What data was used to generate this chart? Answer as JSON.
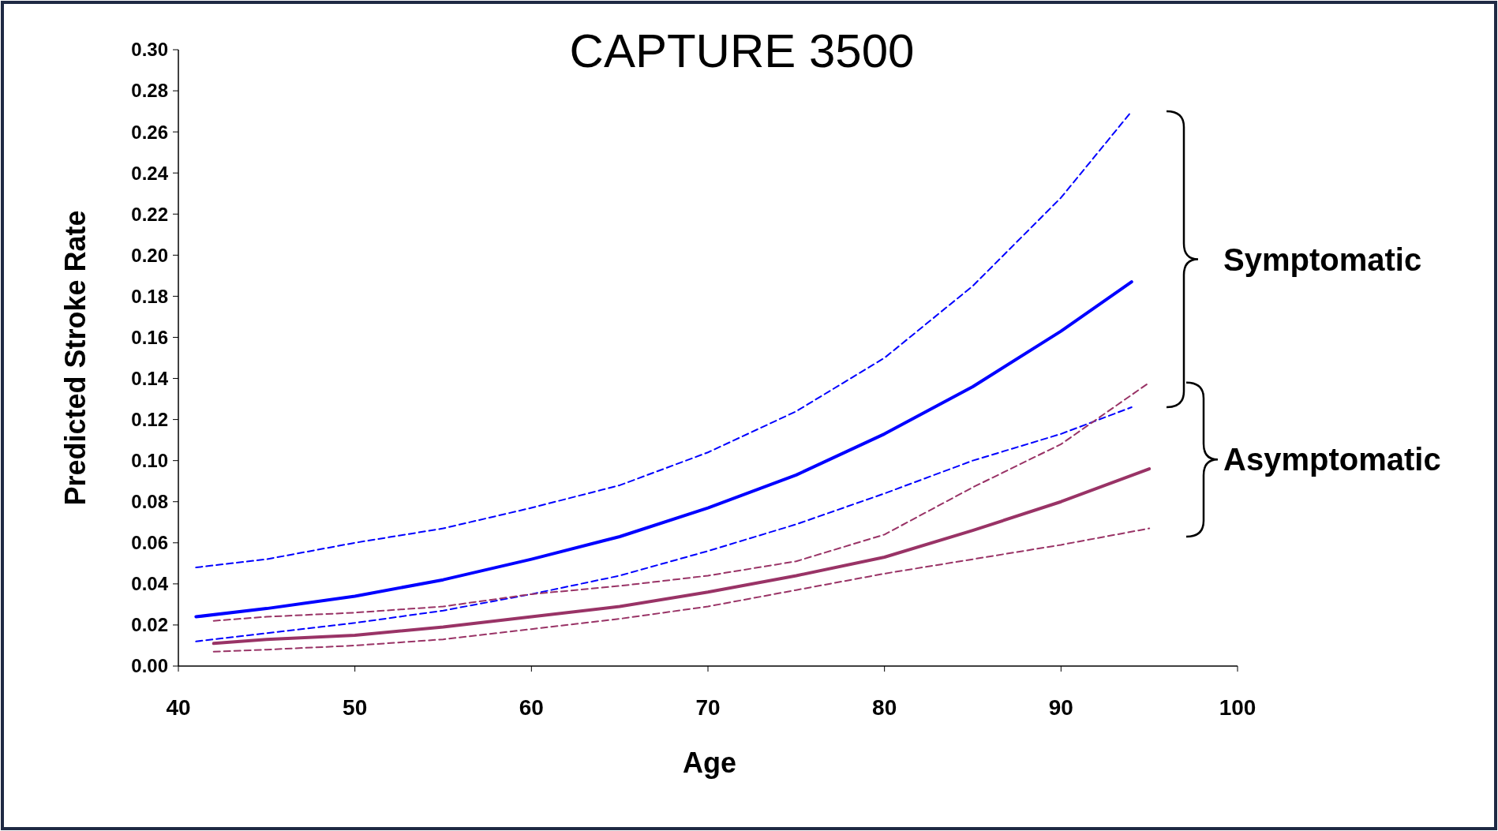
{
  "chart_data": {
    "type": "line",
    "title": "CAPTURE 3500",
    "xlabel": "Age",
    "ylabel": "Predicted Stroke Rate",
    "xlim": [
      40,
      100
    ],
    "xticks": [
      40,
      50,
      60,
      70,
      80,
      90,
      100
    ],
    "ylim": [
      0,
      0.3
    ],
    "yticks": [
      {
        "value": 0,
        "label": "0.00"
      },
      {
        "value": 0.02,
        "label": "0.02"
      },
      {
        "value": 0.04,
        "label": "0.04"
      },
      {
        "value": 0.06,
        "label": "0.06"
      },
      {
        "value": 0.08,
        "label": "0.08"
      },
      {
        "value": 0.1,
        "label": "0.10"
      },
      {
        "value": 0.12,
        "label": "0.12"
      },
      {
        "value": 0.14,
        "label": "0.14"
      },
      {
        "value": 0.16,
        "label": "0.16"
      },
      {
        "value": 0.18,
        "label": "0.18"
      },
      {
        "value": 0.2,
        "label": "0.20"
      },
      {
        "value": 0.22,
        "label": "0.22"
      },
      {
        "value": 0.24,
        "label": "0.24"
      },
      {
        "value": 0.26,
        "label": "0.26"
      },
      {
        "value": 0.28,
        "label": "0.28"
      },
      {
        "value": 0.3,
        "label": "0.30"
      }
    ],
    "grid": false,
    "marker": "none",
    "series": [
      {
        "color": "#0000ff",
        "line_style": "solid",
        "x": [
          41,
          45,
          50,
          55,
          60,
          65,
          70,
          75,
          80,
          85,
          90,
          94
        ],
        "values": [
          0.024,
          0.028,
          0.034,
          0.042,
          0.052,
          0.063,
          0.077,
          0.093,
          0.113,
          0.136,
          0.163,
          0.187
        ]
      },
      {
        "color": "#0000ff",
        "line_style": "dashed",
        "x": [
          41,
          45,
          50,
          55,
          60,
          65,
          70,
          75,
          80,
          85,
          90,
          94
        ],
        "values": [
          0.048,
          0.052,
          0.06,
          0.067,
          0.077,
          0.088,
          0.104,
          0.124,
          0.15,
          0.185,
          0.228,
          0.27
        ]
      },
      {
        "color": "#0000ff",
        "line_style": "dashed",
        "x": [
          41,
          45,
          50,
          55,
          60,
          65,
          70,
          75,
          80,
          85,
          90,
          94
        ],
        "values": [
          0.012,
          0.016,
          0.021,
          0.027,
          0.035,
          0.044,
          0.056,
          0.069,
          0.084,
          0.1,
          0.113,
          0.126
        ]
      },
      {
        "color": "#993366",
        "line_style": "solid",
        "x": [
          42,
          45,
          50,
          55,
          60,
          65,
          70,
          75,
          80,
          85,
          90,
          95
        ],
        "values": [
          0.011,
          0.013,
          0.015,
          0.019,
          0.024,
          0.029,
          0.036,
          0.044,
          0.053,
          0.066,
          0.08,
          0.096
        ]
      },
      {
        "color": "#993366",
        "line_style": "dashed",
        "x": [
          42,
          45,
          50,
          55,
          60,
          65,
          70,
          75,
          80,
          85,
          90,
          95
        ],
        "values": [
          0.022,
          0.024,
          0.026,
          0.029,
          0.035,
          0.039,
          0.044,
          0.051,
          0.064,
          0.087,
          0.108,
          0.138
        ]
      },
      {
        "color": "#993366",
        "line_style": "dashed",
        "x": [
          42,
          45,
          50,
          55,
          60,
          65,
          70,
          75,
          80,
          85,
          90,
          95
        ],
        "values": [
          0.007,
          0.008,
          0.01,
          0.013,
          0.018,
          0.023,
          0.029,
          0.037,
          0.045,
          0.052,
          0.059,
          0.067
        ]
      }
    ],
    "annotations": [
      "Symptomatic",
      "Asymptomatic"
    ]
  }
}
